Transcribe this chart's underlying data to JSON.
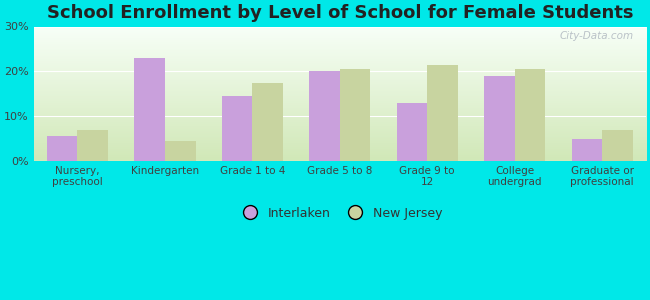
{
  "title": "School Enrollment by Level of School for Female Students",
  "categories": [
    "Nursery,\npreschool",
    "Kindergarten",
    "Grade 1 to 4",
    "Grade 5 to 8",
    "Grade 9 to\n12",
    "College\nundergrad",
    "Graduate or\nprofessional"
  ],
  "interlaken": [
    5.5,
    23.0,
    14.5,
    20.0,
    13.0,
    19.0,
    5.0
  ],
  "new_jersey": [
    7.0,
    4.5,
    17.5,
    20.5,
    21.5,
    20.5,
    7.0
  ],
  "interlaken_color": "#c9a0dc",
  "new_jersey_color": "#c8d4a0",
  "background_outer": "#00e8e8",
  "ylim": [
    0,
    30
  ],
  "yticks": [
    0,
    10,
    20,
    30
  ],
  "ytick_labels": [
    "0%",
    "10%",
    "20%",
    "30%"
  ],
  "bar_width": 0.35,
  "title_fontsize": 13,
  "legend_labels": [
    "Interlaken",
    "New Jersey"
  ],
  "watermark": "City-Data.com"
}
